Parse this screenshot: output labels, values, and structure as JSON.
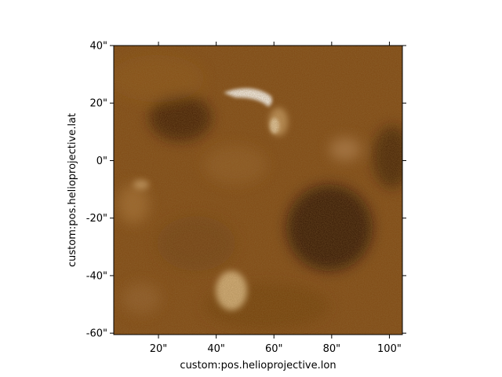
{
  "plot": {
    "x_axis_label": "custom:pos.helioprojective.lon",
    "y_axis_label": "custom:pos.helioprojective.lat",
    "x_ticks": [
      {
        "value": 20,
        "label": "20\""
      },
      {
        "value": 40,
        "label": "40\""
      },
      {
        "value": 60,
        "label": "60\""
      },
      {
        "value": 80,
        "label": "80\""
      },
      {
        "value": 100,
        "label": "100\""
      }
    ],
    "y_ticks": [
      {
        "value": 40,
        "label": "40\""
      },
      {
        "value": 20,
        "label": "20\""
      },
      {
        "value": 0,
        "label": "0\""
      },
      {
        "value": -20,
        "label": "-20\""
      },
      {
        "value": -40,
        "label": "-40\""
      },
      {
        "value": -60,
        "label": "-60\""
      }
    ],
    "x_range": [
      4.5,
      104.5
    ],
    "y_range": [
      -60.5,
      40
    ],
    "colormap": [
      "#000000",
      "#3a1e07",
      "#8b4f14",
      "#c7893a",
      "#ead1a3",
      "#ffffff"
    ]
  }
}
